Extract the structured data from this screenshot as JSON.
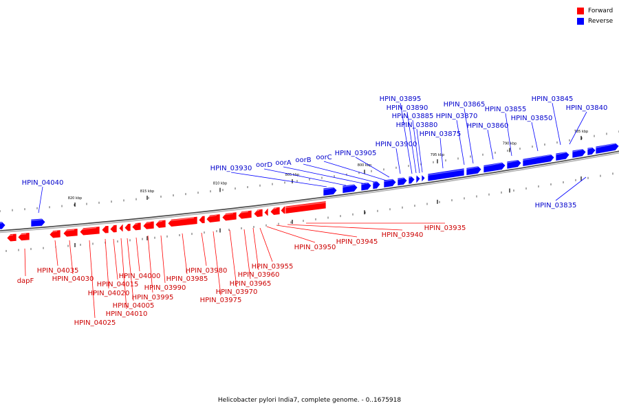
{
  "legend": [
    {
      "label": "Forward",
      "color": "#ff0000"
    },
    {
      "label": "Reverse",
      "color": "#0000ff"
    }
  ],
  "caption": "Helicobacter pylori India7, complete genome. - 0..1675918",
  "colors": {
    "forward": "#ff0000",
    "forward_text": "#cc0000",
    "reverse": "#0000ff",
    "reverse_text": "#0000cc",
    "backbone": "#888888"
  },
  "ticks": [
    "820 kbp",
    "815 kbp",
    "810 kbp",
    "805 kbp",
    "800 kbp",
    "795 kbp",
    "790 kbp",
    "785 kbp"
  ],
  "reverse_genes": [
    "HPIN_04040",
    "HPIN_03930",
    "oorD",
    "oorA",
    "oorB",
    "oorC",
    "HPIN_03905",
    "HPIN_03900",
    "HPIN_03895",
    "HPIN_03890",
    "HPIN_03885",
    "HPIN_03880",
    "HPIN_03875",
    "HPIN_03870",
    "HPIN_03865",
    "HPIN_03860",
    "HPIN_03855",
    "HPIN_03850",
    "HPIN_03845",
    "HPIN_03840",
    "HPIN_03835"
  ],
  "forward_genes": [
    "dapF",
    "HPIN_04035",
    "HPIN_04030",
    "HPIN_04025",
    "HPIN_04020",
    "HPIN_04015",
    "HPIN_04010",
    "HPIN_04005",
    "HPIN_04000",
    "HPIN_03995",
    "HPIN_03990",
    "HPIN_03985",
    "HPIN_03980",
    "HPIN_03975",
    "HPIN_03970",
    "HPIN_03965",
    "HPIN_03960",
    "HPIN_03955",
    "HPIN_03950",
    "HPIN_03945",
    "HPIN_03940",
    "HPIN_03935"
  ]
}
